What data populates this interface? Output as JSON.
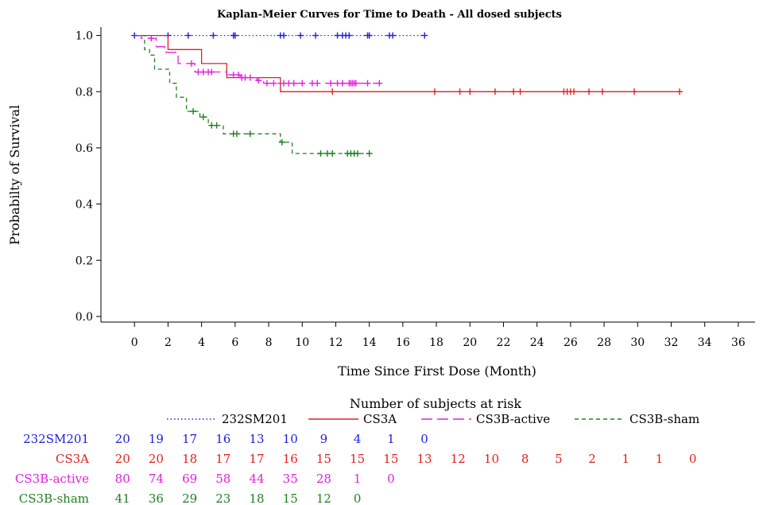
{
  "chart_data": {
    "type": "line",
    "title": "Kaplan-Meier Curves for Time to Death - All dosed subjects",
    "xlabel": "Time Since First Dose (Month)",
    "ylabel": "Probabilty of Survival",
    "xlim": [
      -2,
      37
    ],
    "ylim": [
      -0.02,
      1.03
    ],
    "xticks": [
      "0",
      "2",
      "4",
      "6",
      "8",
      "10",
      "12",
      "14",
      "16",
      "18",
      "20",
      "22",
      "24",
      "26",
      "28",
      "30",
      "32",
      "34",
      "36"
    ],
    "yticks": [
      "0.0",
      "0.2",
      "0.4",
      "0.6",
      "0.8",
      "1.0"
    ],
    "grid": false,
    "legend_position": "bottom",
    "risk_table_title": "Number of subjects at risk",
    "risk_times": [
      0,
      2,
      4,
      6,
      8,
      10,
      12,
      14,
      16,
      18,
      20,
      22,
      24,
      26,
      28,
      30,
      32,
      34
    ],
    "series": [
      {
        "name": "232SM201",
        "color": "#2020dd",
        "dash": "1.5,3",
        "steps": [
          [
            0,
            1.0
          ],
          [
            17.3,
            1.0
          ]
        ],
        "censored": [
          [
            0,
            1.0
          ],
          [
            2,
            1.0
          ],
          [
            3.2,
            1.0
          ],
          [
            4.7,
            1.0
          ],
          [
            5.9,
            1.0
          ],
          [
            6.0,
            1.0
          ],
          [
            8.7,
            1.0
          ],
          [
            8.9,
            1.0
          ],
          [
            9.9,
            1.0
          ],
          [
            10.8,
            1.0
          ],
          [
            12.1,
            1.0
          ],
          [
            12.4,
            1.0
          ],
          [
            12.6,
            1.0
          ],
          [
            12.8,
            1.0
          ],
          [
            13.9,
            1.0
          ],
          [
            14.0,
            1.0
          ],
          [
            15.2,
            1.0
          ],
          [
            15.4,
            1.0
          ],
          [
            17.3,
            1.0
          ]
        ],
        "at_risk": [
          "20",
          "19",
          "17",
          "16",
          "13",
          "10",
          "9",
          "4",
          "1",
          "0"
        ]
      },
      {
        "name": "CS3A",
        "color": "#e02020",
        "dash": "",
        "steps": [
          [
            0,
            1.0
          ],
          [
            2.0,
            1.0
          ],
          [
            2.0,
            0.95
          ],
          [
            4.0,
            0.95
          ],
          [
            4.0,
            0.9
          ],
          [
            5.5,
            0.9
          ],
          [
            5.5,
            0.85
          ],
          [
            8.7,
            0.85
          ],
          [
            8.7,
            0.8
          ],
          [
            32.5,
            0.8
          ]
        ],
        "censored": [
          [
            11.8,
            0.8
          ],
          [
            17.9,
            0.8
          ],
          [
            19.4,
            0.8
          ],
          [
            20.0,
            0.8
          ],
          [
            21.5,
            0.8
          ],
          [
            22.6,
            0.8
          ],
          [
            23.0,
            0.8
          ],
          [
            25.6,
            0.8
          ],
          [
            25.8,
            0.8
          ],
          [
            26.0,
            0.8
          ],
          [
            26.2,
            0.8
          ],
          [
            27.1,
            0.8
          ],
          [
            27.9,
            0.8
          ],
          [
            29.8,
            0.8
          ],
          [
            32.5,
            0.8
          ]
        ],
        "at_risk": [
          "20",
          "20",
          "18",
          "17",
          "17",
          "16",
          "15",
          "15",
          "15",
          "13",
          "12",
          "10",
          "8",
          "5",
          "2",
          "1",
          "1",
          "0"
        ]
      },
      {
        "name": "CS3B-active",
        "color": "#e020e0",
        "dash": "14,6",
        "steps": [
          [
            0,
            1.0
          ],
          [
            0.4,
            1.0
          ],
          [
            0.4,
            0.99
          ],
          [
            1.3,
            0.99
          ],
          [
            1.3,
            0.96
          ],
          [
            1.8,
            0.96
          ],
          [
            1.8,
            0.94
          ],
          [
            2.6,
            0.94
          ],
          [
            2.6,
            0.9
          ],
          [
            3.6,
            0.9
          ],
          [
            3.6,
            0.87
          ],
          [
            5.5,
            0.87
          ],
          [
            5.5,
            0.86
          ],
          [
            6.3,
            0.86
          ],
          [
            6.3,
            0.85
          ],
          [
            7.3,
            0.85
          ],
          [
            7.3,
            0.84
          ],
          [
            7.7,
            0.84
          ],
          [
            7.7,
            0.83
          ],
          [
            14.6,
            0.83
          ]
        ],
        "censored": [
          [
            1.0,
            0.99
          ],
          [
            3.4,
            0.9
          ],
          [
            3.8,
            0.87
          ],
          [
            4.1,
            0.87
          ],
          [
            4.4,
            0.87
          ],
          [
            4.6,
            0.87
          ],
          [
            5.9,
            0.86
          ],
          [
            6.2,
            0.86
          ],
          [
            6.4,
            0.85
          ],
          [
            6.6,
            0.85
          ],
          [
            6.9,
            0.85
          ],
          [
            7.4,
            0.84
          ],
          [
            7.9,
            0.83
          ],
          [
            8.3,
            0.83
          ],
          [
            8.9,
            0.83
          ],
          [
            9.2,
            0.83
          ],
          [
            9.5,
            0.83
          ],
          [
            10.0,
            0.83
          ],
          [
            10.6,
            0.83
          ],
          [
            10.9,
            0.83
          ],
          [
            11.7,
            0.83
          ],
          [
            12.1,
            0.83
          ],
          [
            12.4,
            0.83
          ],
          [
            12.8,
            0.83
          ],
          [
            12.9,
            0.83
          ],
          [
            13.0,
            0.83
          ],
          [
            13.1,
            0.83
          ],
          [
            13.2,
            0.83
          ],
          [
            13.9,
            0.83
          ],
          [
            14.6,
            0.83
          ]
        ],
        "at_risk": [
          "80",
          "74",
          "69",
          "58",
          "44",
          "35",
          "28",
          "1",
          "0"
        ]
      },
      {
        "name": "CS3B-sham",
        "color": "#208020",
        "dash": "5,4",
        "steps": [
          [
            0,
            1.0
          ],
          [
            0.6,
            1.0
          ],
          [
            0.6,
            0.95
          ],
          [
            0.9,
            0.95
          ],
          [
            0.9,
            0.93
          ],
          [
            1.2,
            0.93
          ],
          [
            1.2,
            0.88
          ],
          [
            2.1,
            0.88
          ],
          [
            2.1,
            0.83
          ],
          [
            2.5,
            0.83
          ],
          [
            2.5,
            0.78
          ],
          [
            3.1,
            0.78
          ],
          [
            3.1,
            0.73
          ],
          [
            3.9,
            0.73
          ],
          [
            3.9,
            0.71
          ],
          [
            4.4,
            0.71
          ],
          [
            4.4,
            0.68
          ],
          [
            5.3,
            0.68
          ],
          [
            5.3,
            0.65
          ],
          [
            8.7,
            0.65
          ],
          [
            8.7,
            0.62
          ],
          [
            9.4,
            0.62
          ],
          [
            9.4,
            0.58
          ],
          [
            14.0,
            0.58
          ]
        ],
        "censored": [
          [
            3.5,
            0.73
          ],
          [
            4.1,
            0.71
          ],
          [
            4.6,
            0.68
          ],
          [
            4.9,
            0.68
          ],
          [
            5.9,
            0.65
          ],
          [
            6.1,
            0.65
          ],
          [
            6.9,
            0.65
          ],
          [
            8.8,
            0.62
          ],
          [
            11.1,
            0.58
          ],
          [
            11.5,
            0.58
          ],
          [
            11.8,
            0.58
          ],
          [
            12.7,
            0.58
          ],
          [
            12.9,
            0.58
          ],
          [
            13.1,
            0.58
          ],
          [
            13.3,
            0.58
          ],
          [
            14.0,
            0.58
          ]
        ],
        "at_risk": [
          "41",
          "36",
          "29",
          "23",
          "18",
          "15",
          "12",
          "0"
        ]
      }
    ]
  }
}
